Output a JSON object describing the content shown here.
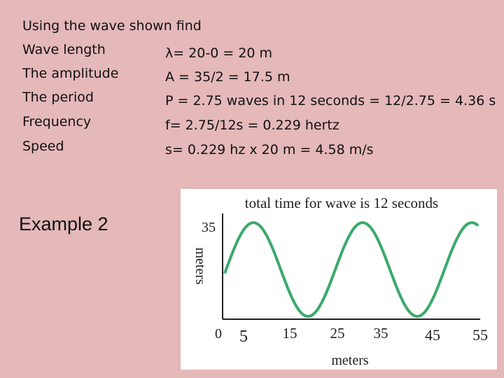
{
  "heading": "Using the wave shown find",
  "rows": [
    {
      "label": "Wave length",
      "answer": "λ= 20-0 = 20 m"
    },
    {
      "label": "The amplitude",
      "answer": "A = 35/2 = 17.5 m"
    },
    {
      "label": "The period",
      "answer": "P = 2.75 waves in 12 seconds = 12/2.75 = 4.36 s"
    },
    {
      "label": "Frequency",
      "answer": "f= 2.75/12s = 0.229 hertz"
    },
    {
      "label": "Speed",
      "answer": "s= 0.229 hz x 20 m = 4.58 m/s"
    }
  ],
  "example": "Example 2",
  "figure": {
    "title": "total time for wave is 12 seconds",
    "y_label": "meters",
    "x_label": "meters",
    "y_tick_labels": [
      "35",
      "0"
    ],
    "x_tick_labels": [
      "5",
      "15",
      "25",
      "35",
      "45",
      "55"
    ]
  }
}
